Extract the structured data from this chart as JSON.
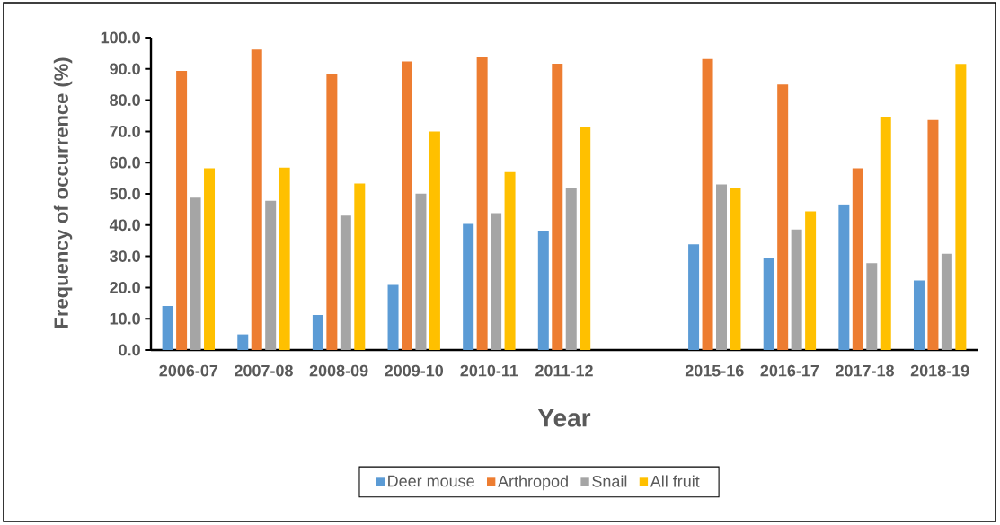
{
  "chart_data": {
    "type": "bar",
    "xlabel": "Year",
    "ylabel": "Frequency of occurrence (%)",
    "categories": [
      "2006-07",
      "2007-08",
      "2008-09",
      "2009-10",
      "2010-11",
      "2011-12",
      null,
      "2015-16",
      "2016-17",
      "2017-18",
      "2018-19"
    ],
    "series": [
      {
        "name": "Deer mouse",
        "color": "#5b9bd5",
        "values": [
          14.1,
          5.0,
          11.2,
          20.8,
          40.4,
          38.2,
          null,
          33.8,
          29.4,
          46.6,
          22.3
        ]
      },
      {
        "name": "Arthropod",
        "color": "#ed7d31",
        "values": [
          89.4,
          96.2,
          88.4,
          92.4,
          93.9,
          91.7,
          null,
          93.2,
          85.0,
          58.2,
          73.6
        ]
      },
      {
        "name": "Snail",
        "color": "#a5a5a5",
        "values": [
          48.8,
          47.8,
          43.0,
          50.1,
          43.8,
          51.8,
          null,
          53.0,
          38.6,
          27.8,
          30.8
        ]
      },
      {
        "name": "All fruit",
        "color": "#ffc000",
        "values": [
          58.2,
          58.4,
          53.3,
          70.0,
          57.0,
          71.4,
          null,
          51.8,
          44.4,
          74.7,
          91.6
        ]
      }
    ],
    "ylim": [
      0,
      100
    ],
    "yticks": [
      {
        "value": 0,
        "label": "0.0"
      },
      {
        "value": 10,
        "label": "10.0"
      },
      {
        "value": 20,
        "label": "20.0"
      },
      {
        "value": 30,
        "label": "30.0"
      },
      {
        "value": 40,
        "label": "40.0"
      },
      {
        "value": 50,
        "label": "50.0"
      },
      {
        "value": 60,
        "label": "60.0"
      },
      {
        "value": 70,
        "label": "70.0"
      },
      {
        "value": 80,
        "label": "80.0"
      },
      {
        "value": 90,
        "label": "90.0"
      },
      {
        "value": 100,
        "label": "100.0"
      }
    ],
    "legend": "bottom"
  }
}
